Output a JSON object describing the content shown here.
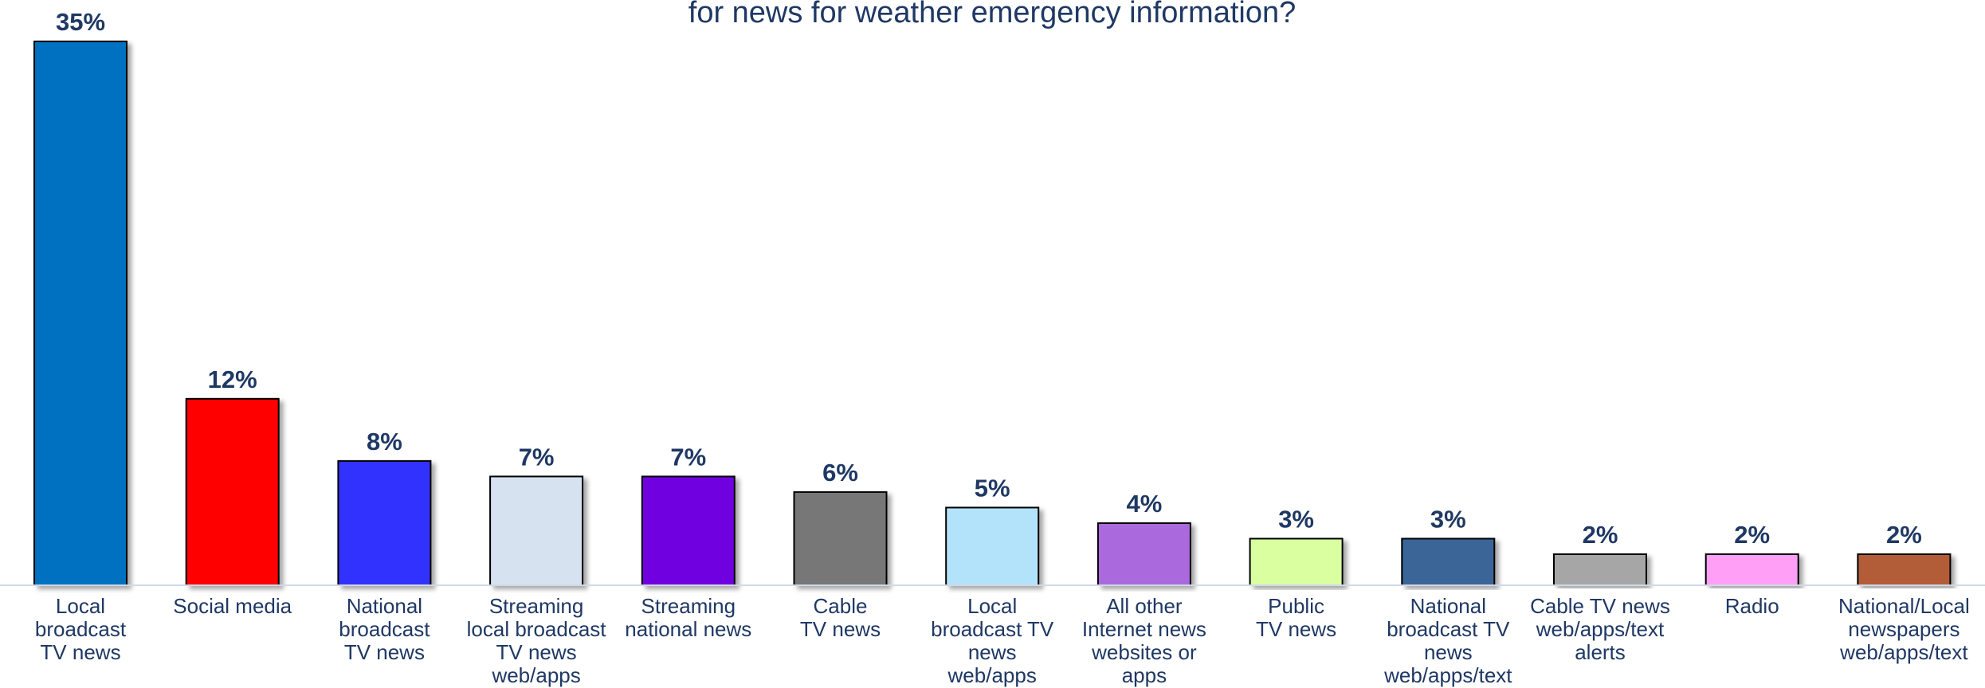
{
  "chart_data": {
    "type": "bar",
    "title": "for news for weather emergency information?",
    "xlabel": "",
    "ylabel": "",
    "ylim": [
      0,
      35
    ],
    "grid": false,
    "value_suffix": "%",
    "categories": [
      [
        "Local",
        "broadcast",
        "TV news"
      ],
      [
        "Social media"
      ],
      [
        "National",
        "broadcast",
        "TV news"
      ],
      [
        "Streaming",
        "local broadcast",
        "TV news",
        "web/apps"
      ],
      [
        "Streaming",
        "national news"
      ],
      [
        "Cable",
        "TV news"
      ],
      [
        "Local",
        "broadcast TV",
        "news",
        "web/apps"
      ],
      [
        "All other",
        "Internet news",
        "websites or",
        "apps"
      ],
      [
        "Public",
        "TV news"
      ],
      [
        "National",
        "broadcast TV",
        "news",
        "web/apps/text"
      ],
      [
        "Cable TV news",
        "web/apps/text",
        "alerts"
      ],
      [
        "Radio"
      ],
      [
        "National/Local",
        "newspapers",
        "web/apps/text"
      ]
    ],
    "values": [
      35,
      12,
      8,
      7,
      7,
      6,
      5,
      4,
      3,
      3,
      2,
      2,
      2
    ],
    "labels": [
      "35%",
      "12%",
      "8%",
      "7%",
      "7%",
      "6%",
      "5%",
      "4%",
      "3%",
      "3%",
      "2%",
      "2%",
      "2%"
    ],
    "colors": [
      "#0070c0",
      "#ff0000",
      "#3333ff",
      "#d6e2ef",
      "#7000e0",
      "#777777",
      "#b3e3fa",
      "#aa6bdd",
      "#d9ffa0",
      "#3a6596",
      "#a6a6a6",
      "#ff9ff5",
      "#b35c38"
    ]
  }
}
